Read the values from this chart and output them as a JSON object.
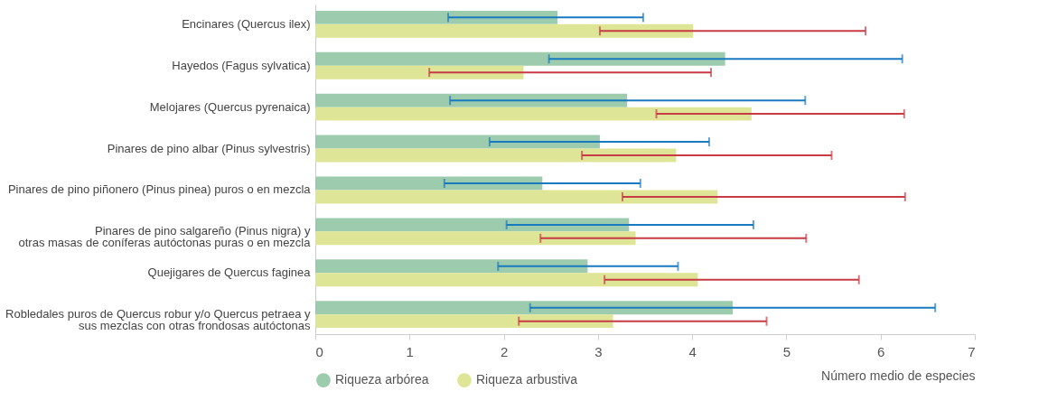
{
  "chart_data": {
    "type": "bar",
    "orientation": "horizontal",
    "xlabel": "Número medio de especies",
    "categories": [
      "Encinares (Quercus ilex)",
      "Hayedos (Fagus sylvatica)",
      "Melojares (Quercus pyrenaica)",
      "Pinares de pino albar (Pinus sylvestris)",
      "Pinares de pino piñonero (Pinus pinea) puros o en mezcla",
      "Pinares de pino salgareño (Pinus nigra) y\notras masas de coníferas autóctonas puras o en mezcla",
      "Quejigares de Quercus faginea",
      "Robledales puros de Quercus robur y/o Quercus petraea y\nsus mezclas con otras frondosas autóctonas"
    ],
    "series": [
      {
        "name": "Riqueza arbórea",
        "color": "#9ccbad",
        "values": [
          2.57,
          4.35,
          3.31,
          3.02,
          2.41,
          3.33,
          2.89,
          4.43
        ],
        "errors": [
          [
            1.41,
            3.48
          ],
          [
            2.48,
            6.23
          ],
          [
            1.43,
            5.2
          ],
          [
            1.85,
            4.18
          ],
          [
            1.37,
            3.45
          ],
          [
            2.03,
            4.65
          ],
          [
            1.94,
            3.85
          ],
          [
            2.28,
            6.58
          ]
        ]
      },
      {
        "name": "Riqueza arbustiva",
        "color": "#dfe596",
        "values": [
          4.01,
          2.21,
          4.63,
          3.83,
          4.27,
          3.4,
          4.06,
          3.16
        ],
        "errors": [
          [
            3.02,
            5.84
          ],
          [
            1.21,
            4.2
          ],
          [
            3.62,
            6.25
          ],
          [
            2.83,
            5.48
          ],
          [
            3.26,
            6.26
          ],
          [
            2.39,
            5.21
          ],
          [
            3.07,
            5.77
          ],
          [
            2.16,
            4.79
          ]
        ]
      }
    ],
    "xlim": [
      0,
      7
    ],
    "xticks": [
      0,
      1,
      2,
      3,
      4,
      5,
      6,
      7
    ],
    "grid": false,
    "legend": "bottom left"
  }
}
